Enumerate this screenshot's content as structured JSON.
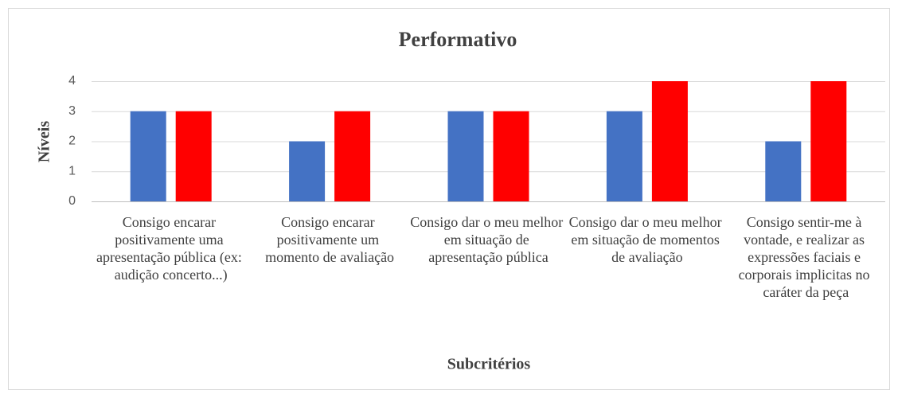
{
  "chart_data": {
    "type": "bar",
    "title": "Performativo",
    "x_label": "Subcritérios",
    "y_label": "Níveis",
    "categories": [
      "Consigo encarar positivamente uma apresentação pública (ex: audição concerto...)",
      "Consigo encarar positivamente um momento de avaliação",
      "Consigo dar o meu melhor em situação de apresentação pública",
      "Consigo dar o meu melhor em situação de momentos de avaliação",
      "Consigo sentir-me à vontade, e realizar as expressões faciais e corporais implicitas no caráter da peça"
    ],
    "series": [
      {
        "color": "#4472c4",
        "values": [
          3,
          2,
          3,
          3,
          2
        ]
      },
      {
        "color": "#ff0000",
        "values": [
          3,
          3,
          3,
          4,
          4
        ]
      }
    ],
    "ylim": [
      0,
      4
    ],
    "yticks": [
      0,
      1,
      2,
      3,
      4
    ],
    "grid": true
  }
}
